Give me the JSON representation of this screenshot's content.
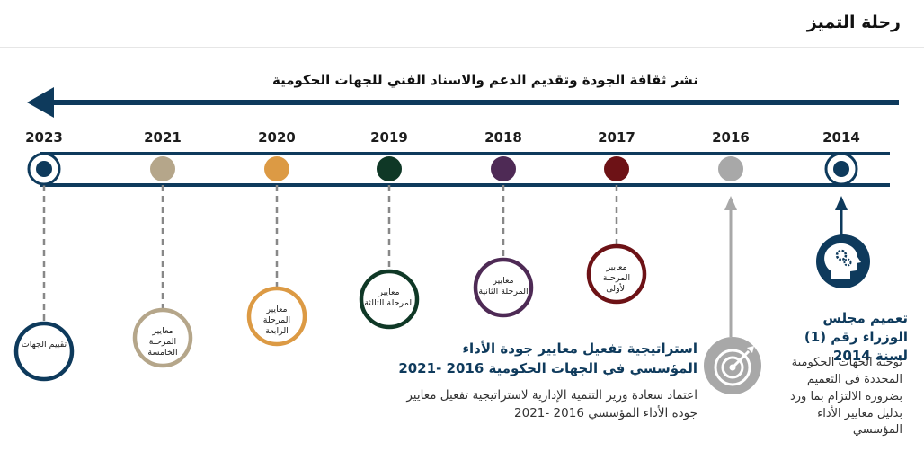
{
  "header": {
    "title": "رحلة التميز"
  },
  "banner": {
    "text": "نشر ثقافة الجودة وتقديم الدعم والاسناد الفني للجهات الحكومية"
  },
  "timeline": {
    "years": [
      {
        "year": "2023",
        "color": "#0e3a5c",
        "phase": "تقييم الجهات"
      },
      {
        "year": "2021",
        "color": "#b5a68a",
        "phase": "معايير المرحلة الخامسة"
      },
      {
        "year": "2020",
        "color": "#dc9a44",
        "phase": "معايير المرحلة الرابعة"
      },
      {
        "year": "2019",
        "color": "#0f3826",
        "phase": "معايير المرحلة الثالثة"
      },
      {
        "year": "2018",
        "color": "#4e2a55",
        "phase": "معايير المرحلة الثانية"
      },
      {
        "year": "2017",
        "color": "#6d1216",
        "phase": "معايير المرحلة الأولى"
      },
      {
        "year": "2016",
        "color": "#a8a8a8"
      },
      {
        "year": "2014",
        "color": "#0e3a5c"
      }
    ]
  },
  "milestone_2014": {
    "title": "تعميم مجلس الوزراء رقم (1) لسنة 2014",
    "text": "توجيه الجهات الحكومية المحددة في التعميم بضرورة الالتزام بما ورد بدليل معايير الأداء المؤسسي",
    "icon": "head-gears-icon"
  },
  "milestone_2016": {
    "title": "استراتيجية تفعيل معايير جودة الأداء المؤسسي في الجهات الحكومية 2016 -2021",
    "text": "اعتماد سعادة وزير التنمية الإدارية لاستراتيجية تفعيل معايير جودة الأداء المؤسسي 2016 -2021",
    "icon": "target-icon"
  }
}
